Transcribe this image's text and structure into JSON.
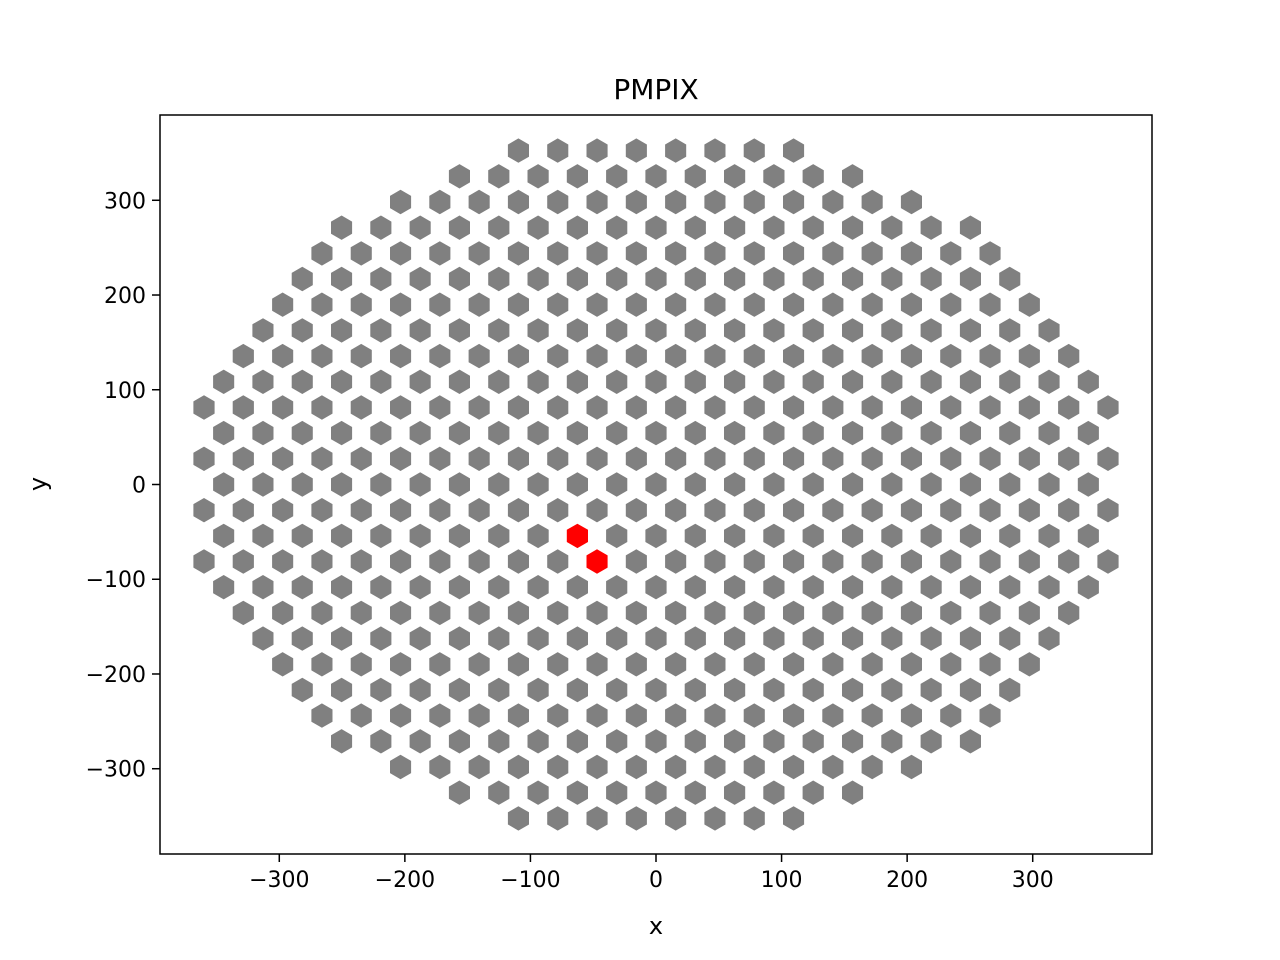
{
  "chart_data": {
    "type": "scatter",
    "title": "PMPIX",
    "xlabel": "x",
    "ylabel": "y",
    "xlim": [
      -395,
      395
    ],
    "ylim": [
      -390,
      390
    ],
    "xticks": [
      -300,
      -200,
      -100,
      0,
      100,
      200,
      300
    ],
    "yticks": [
      -300,
      -200,
      -100,
      0,
      100,
      200,
      300
    ],
    "xtick_labels": [
      "−300",
      "−200",
      "−100",
      "0",
      "100",
      "200",
      "300"
    ],
    "ytick_labels": [
      "−300",
      "−200",
      "−100",
      "0",
      "100",
      "200",
      "300"
    ],
    "grid": false,
    "marker": "hexagon",
    "pixel_pitch": 31.3,
    "array_boundary_radius": 375,
    "series": [
      {
        "color": "#808080",
        "description": "hexagonal pixel lattice, odd rows offset by half pitch, rows spaced pitch*sqrt(3)/2, all pixels within boundary radius"
      },
      {
        "color": "#ff0000",
        "points": [
          [
            -62.6,
            -54.2
          ],
          [
            -46.9,
            -81.3
          ]
        ]
      }
    ]
  }
}
